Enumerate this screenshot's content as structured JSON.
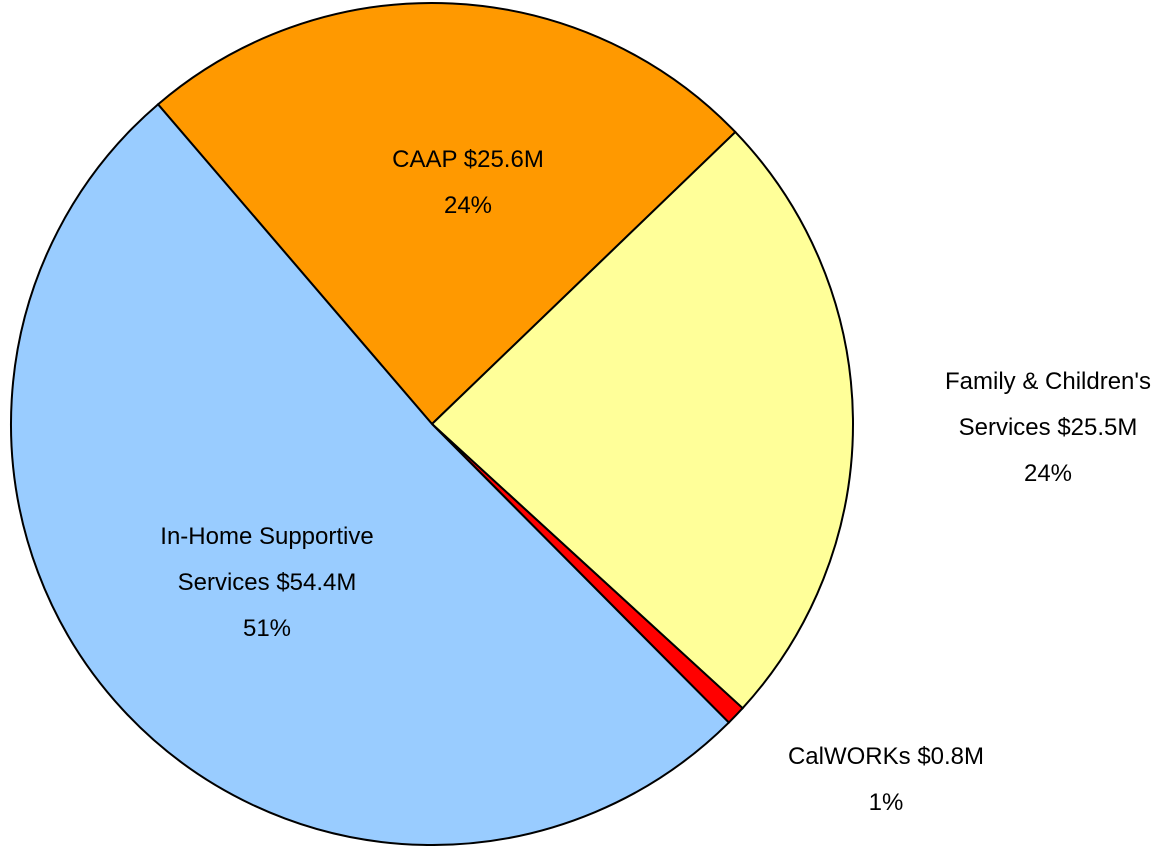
{
  "chart_data": {
    "type": "pie",
    "categories": [
      "CAAP",
      "Family & Children's Services",
      "CalWORKs",
      "In-Home Supportive Services"
    ],
    "values": [
      25.6,
      25.5,
      0.8,
      54.4
    ],
    "value_labels": [
      "$25.6M",
      "$25.5M",
      "$0.8M",
      "$54.4M"
    ],
    "percents": [
      24,
      24,
      1,
      51
    ],
    "percent_labels": [
      "24%",
      "24%",
      "1%",
      "51%"
    ],
    "colors": [
      "#FF9900",
      "#FFFF99",
      "#FF0000",
      "#99CCFF"
    ]
  }
}
